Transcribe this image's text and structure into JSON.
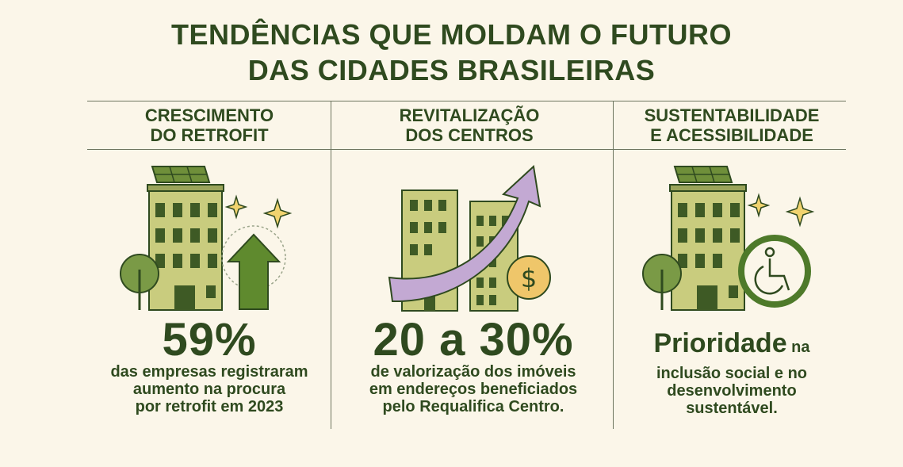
{
  "title": {
    "line1": "TENDÊNCIAS QUE MOLDAM O FUTURO",
    "line2": "DAS CIDADES BRASILEIRAS"
  },
  "columns": [
    {
      "heading_line1": "CRESCIMENTO",
      "heading_line2": "DO RETROFIT",
      "stat": "59%",
      "desc_lines": [
        "das empresas registraram",
        "aumento na procura",
        "por retrofit em 2023"
      ],
      "icons": [
        "building-icon",
        "solar-panel-icon",
        "tree-icon",
        "up-arrow-icon",
        "sparkle-icon"
      ]
    },
    {
      "heading_line1": "REVITALIZAÇÃO",
      "heading_line2": "DOS CENTROS",
      "stat": "20 a 30%",
      "desc_lines": [
        "de valorização dos imóveis",
        "em endereços beneficiados",
        "pelo Requalifica Centro."
      ],
      "icons": [
        "building-icon",
        "curved-arrow-icon",
        "dollar-coin-icon"
      ]
    },
    {
      "heading_line1": "SUSTENTABILIDADE",
      "heading_line2": "E ACESSIBILIDADE",
      "stat_bold": "Prioridade",
      "stat_rest": " na",
      "desc_lines": [
        "inclusão social e no",
        "desenvolvimento",
        "sustentável."
      ],
      "icons": [
        "building-icon",
        "solar-panel-icon",
        "tree-icon",
        "wheelchair-icon",
        "sparkle-icon"
      ]
    }
  ],
  "colors": {
    "background": "#fbf6e9",
    "dark_green": "#2f4a1f",
    "building_green": "#c9cc7e",
    "window_green": "#3e5a25",
    "arrow_purple": "#c3a9d3",
    "coin_gold": "#efc66a",
    "sparkle_yellow": "#f1d36f"
  }
}
